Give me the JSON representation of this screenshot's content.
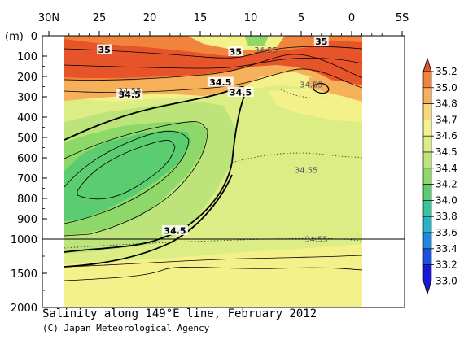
{
  "chart_data": {
    "type": "heatmap",
    "title": "Salinity along 149°E line, February 2012",
    "credit": "(C) Japan Meteorological Agency",
    "xlabel": "",
    "ylabel": "(m)",
    "x_ticks": [
      "30N",
      "25",
      "20",
      "15",
      "10",
      "5",
      "0",
      "5S"
    ],
    "x_range_lat": [
      30,
      -5
    ],
    "y_ticks": [
      "0",
      "100",
      "200",
      "300",
      "400",
      "500",
      "600",
      "700",
      "800",
      "900",
      "1000",
      "1500",
      "2000"
    ],
    "y_range_m": [
      0,
      2000
    ],
    "depth_axis_break_m": 1000,
    "colorbar": {
      "levels": [
        "35.2",
        "35.0",
        "34.8",
        "34.7",
        "34.6",
        "34.5",
        "34.4",
        "34.2",
        "34.0",
        "33.8",
        "33.6",
        "33.4",
        "33.2",
        "33.0"
      ],
      "colors": [
        "#e8542a",
        "#f0843c",
        "#f6b05a",
        "#f8d878",
        "#f4f08a",
        "#dced86",
        "#bde47a",
        "#8ed86a",
        "#5ccc70",
        "#3bc49a",
        "#28b4c8",
        "#1f88e0",
        "#1c50e0",
        "#1a18d8"
      ]
    },
    "contour_labels": [
      {
        "text": "35",
        "lat": 24.5,
        "depth_m": 70
      },
      {
        "text": "35",
        "lat": 3.0,
        "depth_m": 30
      },
      {
        "text": "35",
        "lat": 11.5,
        "depth_m": 80
      },
      {
        "text": "34.55",
        "lat": 8.5,
        "depth_m": 70
      },
      {
        "text": "34.5",
        "lat": 13.0,
        "depth_m": 230
      },
      {
        "text": "34.5",
        "lat": 11.0,
        "depth_m": 280
      },
      {
        "text": "34.5",
        "lat": 22.0,
        "depth_m": 290
      },
      {
        "text": "34.55",
        "lat": 22.0,
        "depth_m": 270
      },
      {
        "text": "34.55",
        "lat": 4.0,
        "depth_m": 240
      },
      {
        "text": "34.55",
        "lat": 4.5,
        "depth_m": 660
      },
      {
        "text": "34.5",
        "lat": 17.5,
        "depth_m": 960
      },
      {
        "text": "34.55",
        "lat": 3.5,
        "depth_m": 1000
      }
    ]
  }
}
